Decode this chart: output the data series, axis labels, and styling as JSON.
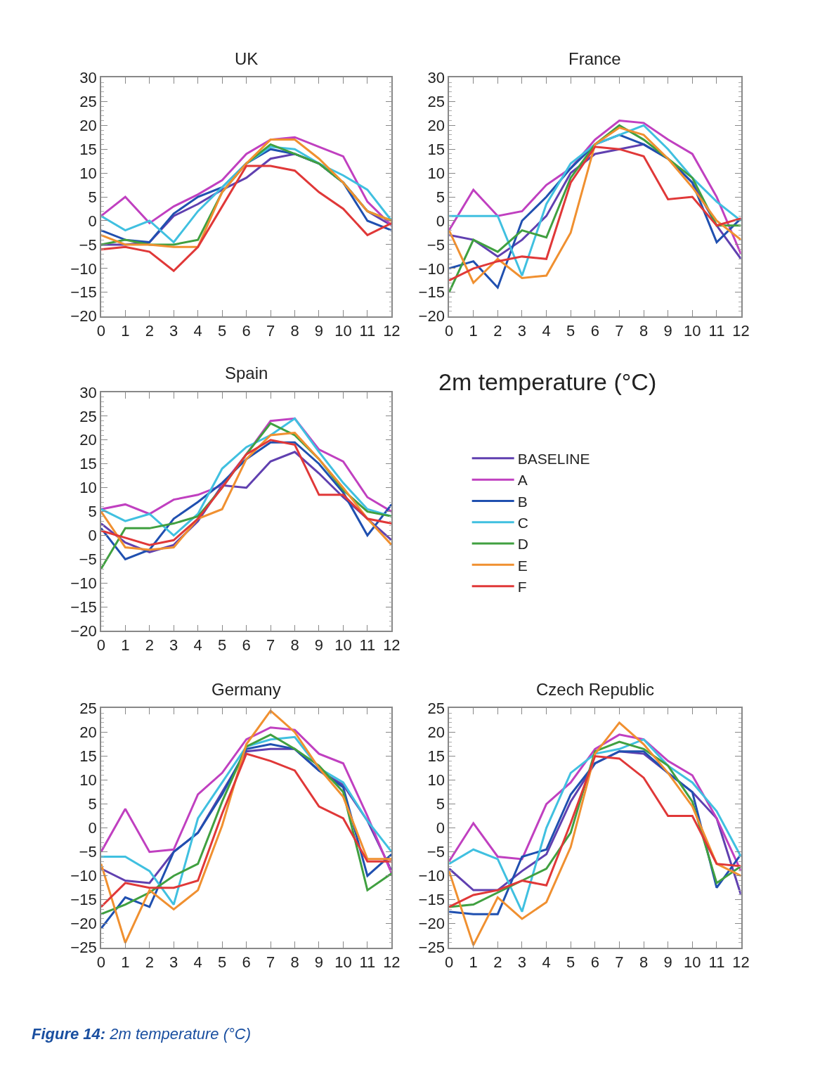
{
  "chart_data": [
    {
      "type": "line",
      "title": "UK",
      "x": [
        0,
        1,
        2,
        3,
        4,
        5,
        6,
        7,
        8,
        9,
        10,
        11,
        12
      ],
      "xlim": [
        0,
        12
      ],
      "xticks": [
        0,
        1,
        2,
        3,
        4,
        5,
        6,
        7,
        8,
        9,
        10,
        11,
        12
      ],
      "ylim": [
        -20,
        30
      ],
      "yticks": [
        -20,
        -15,
        -10,
        -5,
        0,
        5,
        10,
        15,
        20,
        25,
        30
      ],
      "line_style": "solid",
      "legend": "bottom right",
      "series": [
        {
          "name": "BASELINE",
          "color": "#6040b0",
          "values": [
            -5,
            -5,
            -4.5,
            1,
            3.5,
            6.5,
            9,
            13,
            14,
            12,
            8,
            2,
            -1
          ]
        },
        {
          "name": "A",
          "color": "#c040c0",
          "values": [
            1,
            5,
            -0.5,
            3,
            5.5,
            8.5,
            14,
            17,
            17.5,
            15.5,
            13.5,
            4,
            -1
          ]
        },
        {
          "name": "B",
          "color": "#2050b0",
          "values": [
            -2,
            -4,
            -4.5,
            1.5,
            5,
            7,
            12,
            15,
            14,
            12,
            8,
            0,
            -2
          ]
        },
        {
          "name": "C",
          "color": "#40c0e0",
          "values": [
            1,
            -2,
            0,
            -4.5,
            2,
            7,
            12,
            15.5,
            15,
            12,
            9.5,
            6.5,
            0
          ]
        },
        {
          "name": "D",
          "color": "#40a040",
          "values": [
            -5,
            -4,
            -5,
            -5,
            -4,
            6,
            12,
            16,
            14,
            12,
            8,
            2,
            0
          ]
        },
        {
          "name": "E",
          "color": "#f09030",
          "values": [
            -3,
            -5,
            -5,
            -5.5,
            -5.5,
            6,
            12,
            17,
            17,
            13,
            8,
            2,
            0
          ]
        },
        {
          "name": "F",
          "color": "#e03838",
          "values": [
            -6,
            -5.5,
            -6.5,
            -10.5,
            -5.5,
            3,
            11.5,
            11.5,
            10.5,
            6,
            2.5,
            -3,
            -0.5
          ]
        }
      ]
    },
    {
      "type": "line",
      "title": "France",
      "x": [
        0,
        1,
        2,
        3,
        4,
        5,
        6,
        7,
        8,
        9,
        10,
        11,
        12
      ],
      "xlim": [
        0,
        12
      ],
      "xticks": [
        0,
        1,
        2,
        3,
        4,
        5,
        6,
        7,
        8,
        9,
        10,
        11,
        12
      ],
      "ylim": [
        -20,
        30
      ],
      "yticks": [
        -20,
        -15,
        -10,
        -5,
        0,
        5,
        10,
        15,
        20,
        25,
        30
      ],
      "line_style": "solid",
      "series": [
        {
          "color": "#6040b0",
          "values": [
            -3,
            -4,
            -7.5,
            -4,
            1,
            10,
            14,
            15,
            16,
            13,
            8,
            -1,
            -8
          ]
        },
        {
          "color": "#c040c0",
          "values": [
            -2,
            6.5,
            1,
            2,
            7.5,
            11,
            17,
            21,
            20.5,
            17,
            14,
            5,
            -7
          ]
        },
        {
          "color": "#2050b0",
          "values": [
            -10,
            -8.5,
            -14,
            0,
            5,
            11,
            16,
            18,
            16,
            13,
            8,
            -4.5,
            0.5
          ]
        },
        {
          "color": "#40c0e0",
          "values": [
            1,
            1,
            1,
            -11.5,
            3.5,
            12,
            16,
            18,
            20,
            15,
            9,
            4,
            0
          ]
        },
        {
          "color": "#40a040",
          "values": [
            -15,
            -4,
            -6.5,
            -2,
            -3.5,
            9,
            16,
            20,
            17,
            13,
            9,
            -1,
            -1
          ]
        },
        {
          "color": "#f09030",
          "values": [
            -2,
            -13,
            -8,
            -12,
            -11.5,
            -2.5,
            16,
            19.5,
            18,
            13,
            7,
            0,
            -4
          ]
        },
        {
          "color": "#e03838",
          "values": [
            -12.5,
            -10,
            -8.5,
            -7.5,
            -8,
            8,
            15.5,
            15,
            13.5,
            4.5,
            5,
            -1,
            0.5
          ]
        }
      ]
    },
    {
      "type": "line",
      "title": "Spain",
      "x": [
        0,
        1,
        2,
        3,
        4,
        5,
        6,
        7,
        8,
        9,
        10,
        11,
        12
      ],
      "xlim": [
        0,
        12
      ],
      "xticks": [
        0,
        1,
        2,
        3,
        4,
        5,
        6,
        7,
        8,
        9,
        10,
        11,
        12
      ],
      "ylim": [
        -20,
        30
      ],
      "yticks": [
        -20,
        -15,
        -10,
        -5,
        0,
        5,
        10,
        15,
        20,
        25,
        30
      ],
      "line_style": "solid",
      "series": [
        {
          "color": "#6040b0",
          "values": [
            2.5,
            -1.5,
            -3.5,
            -2,
            3,
            10.5,
            10,
            15.5,
            17.5,
            13,
            8,
            3.5,
            -1
          ]
        },
        {
          "color": "#c040c0",
          "values": [
            5.5,
            6.5,
            4.5,
            7.5,
            8.5,
            10.5,
            17,
            24,
            24.5,
            18,
            15.5,
            8,
            5
          ]
        },
        {
          "color": "#2050b0",
          "values": [
            1.5,
            -5,
            -3,
            3.5,
            7,
            11,
            16,
            19.5,
            19.5,
            15,
            9,
            0,
            6.5
          ]
        },
        {
          "color": "#40c0e0",
          "values": [
            5.5,
            3,
            4.5,
            0,
            4.5,
            14,
            18.5,
            21,
            24.5,
            17.5,
            11,
            5.5,
            4
          ]
        },
        {
          "color": "#40a040",
          "values": [
            -7,
            1.5,
            1.5,
            2.5,
            4,
            10,
            17,
            23.5,
            21,
            16,
            9.5,
            5,
            4
          ]
        },
        {
          "color": "#f09030",
          "values": [
            5,
            -2.5,
            -3,
            -2.5,
            3.5,
            5.5,
            16,
            21,
            21.5,
            16,
            10,
            3.5,
            -2
          ]
        },
        {
          "color": "#e03838",
          "values": [
            1,
            -0.5,
            -2,
            -1,
            3.5,
            10,
            17,
            20,
            19,
            8.5,
            8.5,
            3.5,
            2.5
          ]
        }
      ]
    },
    {
      "type": "line",
      "title": "Germany",
      "x": [
        0,
        1,
        2,
        3,
        4,
        5,
        6,
        7,
        8,
        9,
        10,
        11,
        12
      ],
      "xlim": [
        0,
        12
      ],
      "xticks": [
        0,
        1,
        2,
        3,
        4,
        5,
        6,
        7,
        8,
        9,
        10,
        11,
        12
      ],
      "ylim": [
        -25,
        25
      ],
      "yticks": [
        -25,
        -20,
        -15,
        -10,
        -5,
        0,
        5,
        10,
        15,
        20,
        25
      ],
      "line_style": "solid",
      "series": [
        {
          "color": "#6040b0",
          "values": [
            -8.5,
            -11,
            -11.5,
            -5,
            -1,
            7.5,
            16,
            16.5,
            16.5,
            12,
            9,
            1.5,
            -9
          ]
        },
        {
          "color": "#c040c0",
          "values": [
            -5,
            4,
            -5,
            -4.5,
            7,
            11.5,
            18.5,
            21,
            20.5,
            15.5,
            13.5,
            2.5,
            -9.5
          ]
        },
        {
          "color": "#2050b0",
          "values": [
            -21,
            -14.5,
            -16.5,
            -5,
            -1,
            7,
            16.5,
            17.5,
            16.5,
            12,
            8.5,
            -10,
            -5.5
          ]
        },
        {
          "color": "#40c0e0",
          "values": [
            -6,
            -6,
            -9,
            -16,
            2,
            9.5,
            17,
            18.5,
            19,
            12.5,
            9.5,
            1.5,
            -5
          ]
        },
        {
          "color": "#40a040",
          "values": [
            -18,
            -16,
            -13.5,
            -10,
            -7.5,
            5.5,
            17,
            19.5,
            16.5,
            13,
            7.5,
            -13,
            -9.5
          ]
        },
        {
          "color": "#f09030",
          "values": [
            -7.5,
            -24,
            -13,
            -17,
            -13,
            0.5,
            17.5,
            24.5,
            20,
            12.5,
            6.5,
            -6.5,
            -6.5
          ]
        },
        {
          "color": "#e03838",
          "values": [
            -16.5,
            -11.5,
            -12.5,
            -12.5,
            -11,
            3,
            15.5,
            14,
            12,
            4.5,
            2,
            -7,
            -7
          ]
        }
      ]
    },
    {
      "type": "line",
      "title": "Czech Republic",
      "x": [
        0,
        1,
        2,
        3,
        4,
        5,
        6,
        7,
        8,
        9,
        10,
        11,
        12
      ],
      "xlim": [
        0,
        12
      ],
      "xticks": [
        0,
        1,
        2,
        3,
        4,
        5,
        6,
        7,
        8,
        9,
        10,
        11,
        12
      ],
      "ylim": [
        -25,
        25
      ],
      "yticks": [
        -25,
        -20,
        -15,
        -10,
        -5,
        0,
        5,
        10,
        15,
        20,
        25
      ],
      "line_style": "solid",
      "series": [
        {
          "color": "#6040b0",
          "values": [
            -8.5,
            -13,
            -13,
            -9,
            -5.5,
            5.5,
            13.5,
            16,
            15.5,
            11.5,
            7.5,
            2,
            -14
          ]
        },
        {
          "color": "#c040c0",
          "values": [
            -7,
            1,
            -6,
            -6.5,
            5,
            9.5,
            16.5,
            19.5,
            18.5,
            14,
            11,
            2,
            -9
          ]
        },
        {
          "color": "#2050b0",
          "values": [
            -17.5,
            -18,
            -18,
            -6,
            -4.5,
            7,
            13.5,
            16,
            16,
            11.5,
            7.5,
            -12.5,
            -5.5
          ]
        },
        {
          "color": "#40c0e0",
          "values": [
            -7.5,
            -4.5,
            -6.5,
            -17.5,
            0,
            11.5,
            15.5,
            16.5,
            18.5,
            13,
            9.5,
            3.5,
            -6
          ]
        },
        {
          "color": "#40a040",
          "values": [
            -16.5,
            -16,
            -13.5,
            -11,
            -8.5,
            -1,
            16,
            18,
            16.5,
            13,
            5.5,
            -11.5,
            -8
          ]
        },
        {
          "color": "#f09030",
          "values": [
            -9,
            -24.5,
            -14.5,
            -19,
            -15.5,
            -4,
            15.5,
            22,
            17.5,
            11.5,
            4.5,
            -7.5,
            -10
          ]
        },
        {
          "color": "#e03838",
          "values": [
            -16.5,
            -14,
            -13,
            -11,
            -12,
            1,
            15,
            14.5,
            10.5,
            2.5,
            2.5,
            -7.5,
            -8
          ]
        }
      ]
    },
    {
      "type": "other",
      "title": "2m temperature (°C)",
      "annotations": [
        "Figure 14: 2m temperature (°C)"
      ]
    }
  ]
}
